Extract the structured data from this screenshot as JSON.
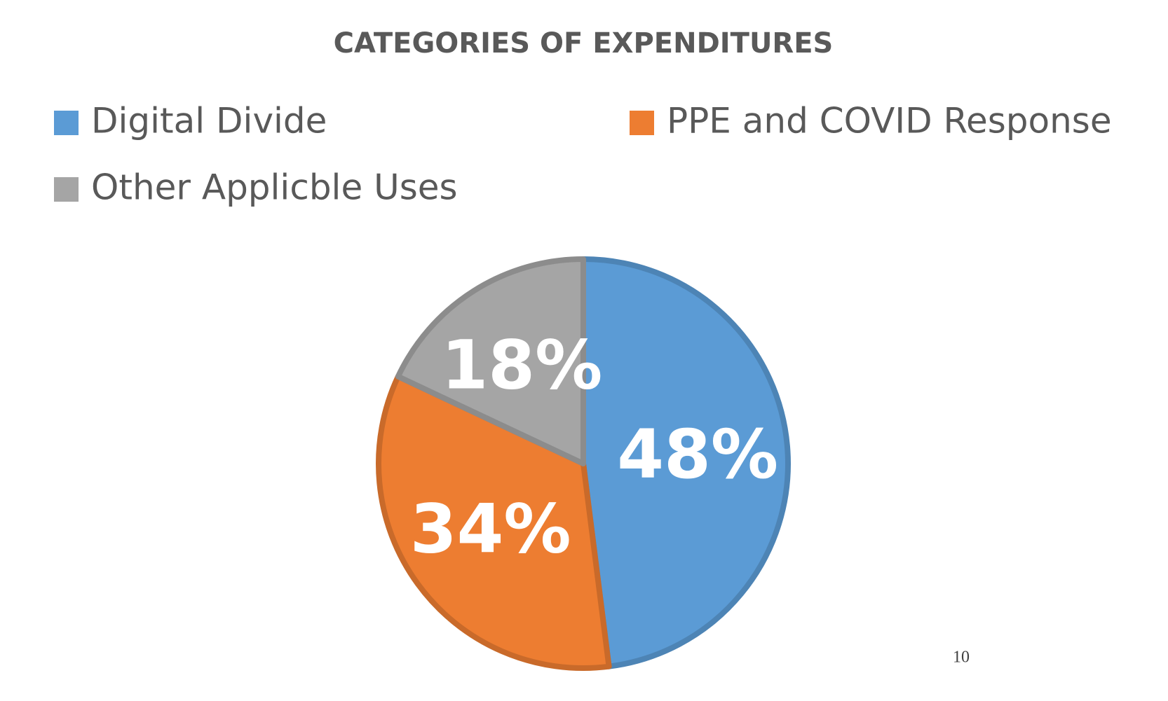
{
  "chart_data": {
    "type": "pie",
    "title": "CATEGORIES OF EXPENDITURES",
    "categories": [
      "Digital Divide",
      "PPE and COVID Response",
      "Other Applicble Uses"
    ],
    "values": [
      48,
      34,
      18
    ],
    "value_labels": [
      "48%",
      "34%",
      "18%"
    ],
    "colors": [
      "#5b9bd5",
      "#ed7d31",
      "#a5a5a5"
    ],
    "legend": "top"
  },
  "page_number": "10"
}
